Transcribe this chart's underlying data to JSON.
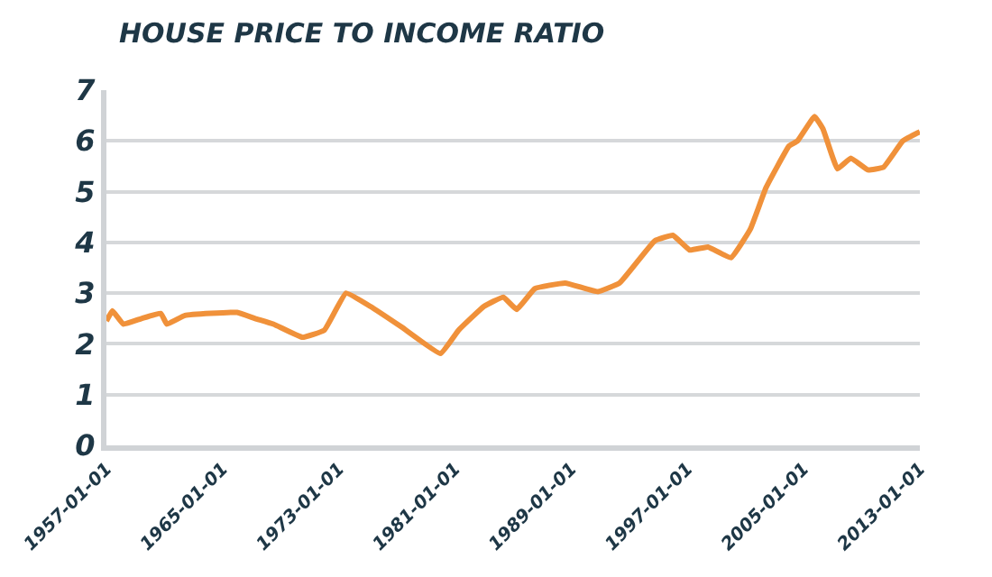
{
  "chart_data": {
    "type": "line",
    "title": "HOUSE PRICE TO INCOME RATIO",
    "x": [
      "1957-01",
      "1957-06",
      "1958-03",
      "1959-06",
      "1960-10",
      "1961-03",
      "1962-06",
      "1966-01",
      "1967-04",
      "1968-07",
      "1970-07",
      "1972-01",
      "1973-07",
      "1975-03",
      "1977-05",
      "1980-01",
      "1981-04",
      "1983-01",
      "1984-05",
      "1985-04",
      "1986-07",
      "1988-08",
      "1990-11",
      "1992-05",
      "1994-10",
      "1996-01",
      "1997-03",
      "1998-06",
      "2000-01",
      "2001-05",
      "2002-06",
      "2004-01",
      "2004-08",
      "2005-10",
      "2006-05",
      "2007-05",
      "2008-04",
      "2009-06",
      "2010-07",
      "2011-11",
      "2013-01"
    ],
    "series": [
      {
        "color": "#f0913a",
        "values": [
          2.45,
          2.65,
          2.39,
          2.5,
          2.6,
          2.39,
          2.56,
          2.62,
          2.5,
          2.39,
          2.13,
          2.27,
          3.0,
          2.74,
          2.33,
          1.81,
          2.27,
          2.74,
          2.92,
          2.68,
          3.09,
          3.2,
          3.03,
          3.2,
          4.03,
          4.14,
          3.85,
          3.91,
          3.7,
          4.26,
          5.08,
          5.9,
          6.0,
          6.48,
          6.24,
          5.45,
          5.66,
          5.43,
          5.48,
          6.0,
          6.18
        ]
      }
    ],
    "xlim": [
      "1957-01-01",
      "2013-01-01"
    ],
    "xticks": [
      "1957-01-01",
      "1965-01-01",
      "1973-01-01",
      "1981-01-01",
      "1989-01-01",
      "1997-01-01",
      "2005-01-01",
      "2013-01-01"
    ],
    "ylim": [
      0,
      7
    ],
    "yticks": [
      0,
      1,
      2,
      3,
      4,
      5,
      6,
      7
    ],
    "grid": "y",
    "legend": false,
    "marker": "none",
    "line_style": "solid"
  }
}
